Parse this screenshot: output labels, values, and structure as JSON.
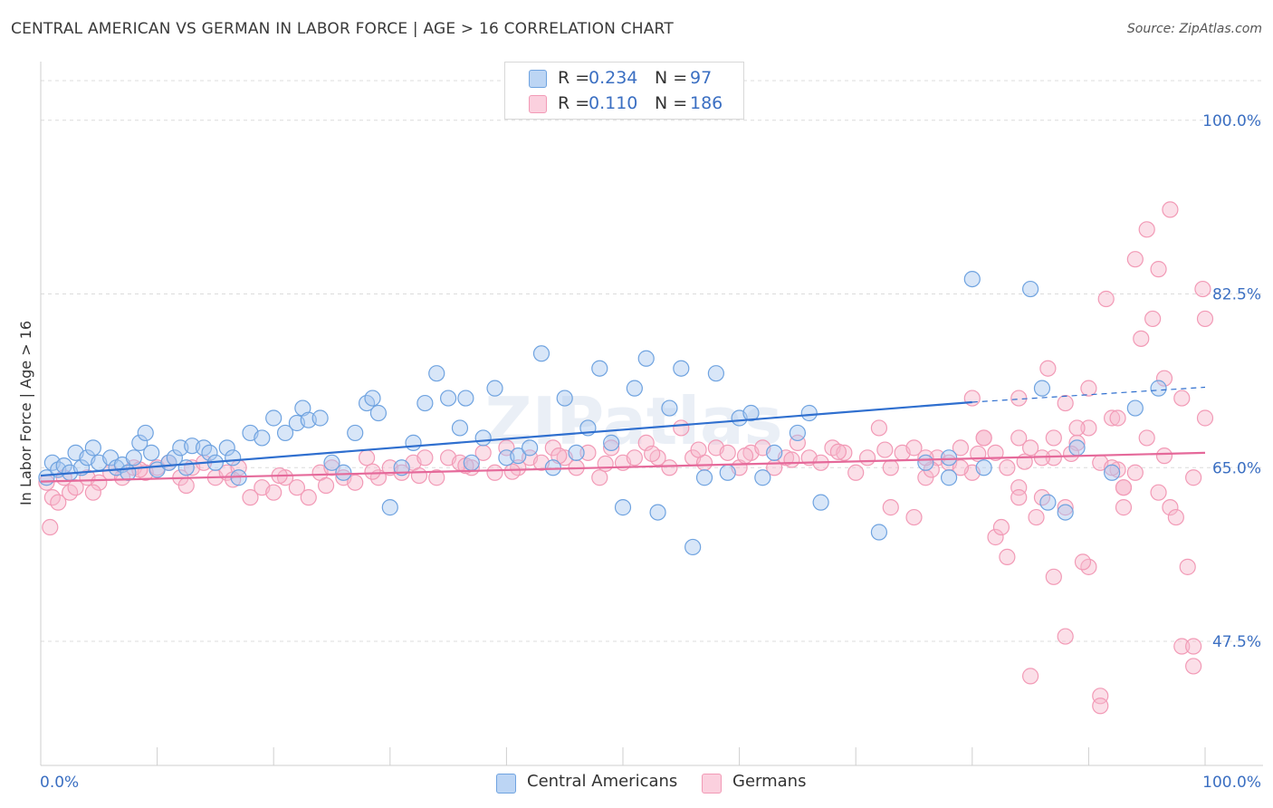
{
  "title": "CENTRAL AMERICAN VS GERMAN IN LABOR FORCE | AGE > 16 CORRELATION CHART",
  "source": "Source: ZipAtlas.com",
  "legend_stats": [
    {
      "r_label": "R =",
      "r_value": "0.234",
      "n_label": "N =",
      "n_value": "97",
      "color": "#a9c8f0"
    },
    {
      "r_label": "R =",
      "r_value": "0.110",
      "n_label": "N =",
      "n_value": "186",
      "color": "#f6b9cd"
    }
  ],
  "bottom_legend": [
    "Central Americans",
    "Germans"
  ],
  "chart_data": {
    "type": "scatter",
    "title": "CENTRAL AMERICAN VS GERMAN IN LABOR FORCE | AGE > 16 CORRELATION CHART",
    "xlabel": "",
    "ylabel": "In Labor Force | Age > 16",
    "xlim": [
      0,
      100
    ],
    "ylim": [
      35,
      105
    ],
    "x_tick_labels": [
      "0.0%",
      "100.0%"
    ],
    "y_ticks": [
      47.5,
      65.0,
      82.5,
      100.0
    ],
    "y_tick_labels": [
      "47.5%",
      "65.0%",
      "82.5%",
      "100.0%"
    ],
    "grid": true,
    "legend_position": "top-center",
    "series": [
      {
        "name": "Central Americans",
        "color": "#6fa3e0",
        "trend": {
          "x": [
            0,
            80
          ],
          "y": [
            64.2,
            71.6
          ],
          "dashed_to": [
            100,
            73.1
          ]
        },
        "points": [
          [
            0.5,
            64
          ],
          [
            1,
            65.5
          ],
          [
            1.5,
            64.8
          ],
          [
            2,
            65.2
          ],
          [
            2.5,
            64.5
          ],
          [
            3,
            66.5
          ],
          [
            3.5,
            65
          ],
          [
            4,
            66
          ],
          [
            4.5,
            67
          ],
          [
            5,
            65.5
          ],
          [
            6,
            66
          ],
          [
            6.5,
            65
          ],
          [
            7,
            65.3
          ],
          [
            7.5,
            64.5
          ],
          [
            8,
            66
          ],
          [
            8.5,
            67.5
          ],
          [
            9,
            68.5
          ],
          [
            9.5,
            66.5
          ],
          [
            10,
            64.8
          ],
          [
            11,
            65.5
          ],
          [
            11.5,
            66
          ],
          [
            12,
            67
          ],
          [
            12.5,
            65
          ],
          [
            13,
            67.2
          ],
          [
            14,
            67
          ],
          [
            14.5,
            66.5
          ],
          [
            15,
            65.5
          ],
          [
            16,
            67
          ],
          [
            16.5,
            66
          ],
          [
            17,
            64
          ],
          [
            18,
            68.5
          ],
          [
            19,
            68
          ],
          [
            20,
            70
          ],
          [
            21,
            68.5
          ],
          [
            22,
            69.5
          ],
          [
            22.5,
            71
          ],
          [
            23,
            69.8
          ],
          [
            24,
            70
          ],
          [
            25,
            65.5
          ],
          [
            26,
            64.5
          ],
          [
            27,
            68.5
          ],
          [
            28,
            71.5
          ],
          [
            28.5,
            72
          ],
          [
            29,
            70.5
          ],
          [
            30,
            61
          ],
          [
            31,
            65
          ],
          [
            32,
            67.5
          ],
          [
            33,
            71.5
          ],
          [
            34,
            74.5
          ],
          [
            35,
            72
          ],
          [
            36,
            69
          ],
          [
            36.5,
            72
          ],
          [
            37,
            65.5
          ],
          [
            38,
            68
          ],
          [
            39,
            73
          ],
          [
            40,
            66
          ],
          [
            41,
            66.2
          ],
          [
            42,
            67
          ],
          [
            43,
            76.5
          ],
          [
            44,
            65
          ],
          [
            45,
            72
          ],
          [
            46,
            66.5
          ],
          [
            47,
            69
          ],
          [
            48,
            75
          ],
          [
            49,
            67.5
          ],
          [
            50,
            61
          ],
          [
            51,
            73
          ],
          [
            52,
            76
          ],
          [
            53,
            60.5
          ],
          [
            54,
            71
          ],
          [
            55,
            75
          ],
          [
            56,
            57
          ],
          [
            57,
            64
          ],
          [
            58,
            74.5
          ],
          [
            59,
            64.5
          ],
          [
            60,
            70
          ],
          [
            61,
            70.5
          ],
          [
            62,
            64
          ],
          [
            63,
            66.5
          ],
          [
            65,
            68.5
          ],
          [
            66,
            70.5
          ],
          [
            67,
            61.5
          ],
          [
            72,
            58.5
          ],
          [
            76,
            65.5
          ],
          [
            78,
            66
          ],
          [
            80,
            84
          ],
          [
            81,
            65
          ],
          [
            85,
            83
          ],
          [
            86,
            73
          ],
          [
            86.5,
            61.5
          ],
          [
            88,
            60.5
          ],
          [
            89,
            67
          ],
          [
            92,
            64.5
          ],
          [
            94,
            71
          ],
          [
            96,
            73
          ],
          [
            78,
            64
          ]
        ]
      },
      {
        "name": "Germans",
        "color": "#f29ab6",
        "trend": {
          "x": [
            0,
            100
          ],
          "y": [
            63.6,
            66.5
          ]
        },
        "points": [
          [
            0.5,
            63.5
          ],
          [
            1,
            62
          ],
          [
            1.5,
            61.5
          ],
          [
            2,
            64
          ],
          [
            2.5,
            62.5
          ],
          [
            3,
            63
          ],
          [
            4,
            64
          ],
          [
            5,
            63.5
          ],
          [
            6,
            64.5
          ],
          [
            7,
            64
          ],
          [
            8,
            65
          ],
          [
            9,
            64.5
          ],
          [
            10,
            65
          ],
          [
            11,
            65.5
          ],
          [
            12,
            64
          ],
          [
            13,
            65
          ],
          [
            14,
            65.5
          ],
          [
            15,
            64
          ],
          [
            16,
            64.5
          ],
          [
            17,
            65
          ],
          [
            18,
            62
          ],
          [
            19,
            63
          ],
          [
            20,
            62.5
          ],
          [
            21,
            64
          ],
          [
            22,
            63
          ],
          [
            23,
            62
          ],
          [
            24,
            64.5
          ],
          [
            25,
            65
          ],
          [
            26,
            64
          ],
          [
            27,
            63.5
          ],
          [
            28,
            66
          ],
          [
            29,
            64
          ],
          [
            30,
            65
          ],
          [
            31,
            64.5
          ],
          [
            32,
            65.5
          ],
          [
            33,
            66
          ],
          [
            34,
            64
          ],
          [
            35,
            66
          ],
          [
            36,
            65.5
          ],
          [
            37,
            65
          ],
          [
            38,
            66.5
          ],
          [
            39,
            64.5
          ],
          [
            40,
            67
          ],
          [
            41,
            65
          ],
          [
            42,
            66
          ],
          [
            43,
            65.5
          ],
          [
            44,
            67
          ],
          [
            45,
            66
          ],
          [
            46,
            65
          ],
          [
            47,
            66.5
          ],
          [
            48,
            64
          ],
          [
            49,
            67
          ],
          [
            50,
            65.5
          ],
          [
            51,
            66
          ],
          [
            52,
            67.5
          ],
          [
            53,
            66
          ],
          [
            54,
            65
          ],
          [
            55,
            69
          ],
          [
            56,
            66
          ],
          [
            57,
            65.5
          ],
          [
            58,
            67
          ],
          [
            59,
            66.5
          ],
          [
            60,
            65
          ],
          [
            61,
            66.5
          ],
          [
            62,
            67
          ],
          [
            63,
            65
          ],
          [
            64,
            66
          ],
          [
            65,
            67.5
          ],
          [
            66,
            66
          ],
          [
            67,
            65.5
          ],
          [
            68,
            67
          ],
          [
            69,
            66.5
          ],
          [
            70,
            64.5
          ],
          [
            71,
            66
          ],
          [
            72,
            69
          ],
          [
            73,
            65
          ],
          [
            74,
            66.5
          ],
          [
            75,
            67
          ],
          [
            76,
            64
          ],
          [
            77,
            66
          ],
          [
            78,
            65.5
          ],
          [
            79,
            67
          ],
          [
            80,
            64.5
          ],
          [
            81,
            68
          ],
          [
            82,
            66.5
          ],
          [
            83,
            65
          ],
          [
            84,
            68
          ],
          [
            85,
            67
          ],
          [
            86,
            62
          ],
          [
            87,
            66
          ],
          [
            88,
            61
          ],
          [
            89,
            67.5
          ],
          [
            90,
            69
          ],
          [
            91,
            65.5
          ],
          [
            92,
            70
          ],
          [
            93,
            63
          ],
          [
            94,
            64.5
          ],
          [
            95,
            68
          ],
          [
            96,
            62.5
          ],
          [
            97,
            61
          ],
          [
            98,
            72
          ],
          [
            99,
            64
          ],
          [
            100,
            70
          ],
          [
            0.8,
            59
          ],
          [
            4.5,
            62.5
          ],
          [
            8.5,
            64.8
          ],
          [
            12.5,
            63.2
          ],
          [
            16.5,
            63.8
          ],
          [
            20.5,
            64.2
          ],
          [
            24.5,
            63.2
          ],
          [
            28.5,
            64.6
          ],
          [
            32.5,
            64.2
          ],
          [
            36.5,
            65.2
          ],
          [
            40.5,
            64.6
          ],
          [
            44.5,
            66.2
          ],
          [
            48.5,
            65.4
          ],
          [
            52.5,
            66.4
          ],
          [
            56.5,
            66.8
          ],
          [
            60.5,
            66.2
          ],
          [
            64.5,
            65.8
          ],
          [
            68.5,
            66.6
          ],
          [
            72.5,
            66.8
          ],
          [
            76.5,
            64.8
          ],
          [
            80.5,
            66.4
          ],
          [
            84.5,
            65.6
          ],
          [
            88.5,
            66.4
          ],
          [
            92.5,
            64.8
          ],
          [
            96.5,
            66.2
          ],
          [
            73,
            61
          ],
          [
            75,
            60
          ],
          [
            76,
            66
          ],
          [
            79,
            65
          ],
          [
            80,
            72
          ],
          [
            81,
            68
          ],
          [
            82,
            58
          ],
          [
            83,
            56
          ],
          [
            84,
            63
          ],
          [
            85,
            44
          ],
          [
            86,
            66
          ],
          [
            87,
            54
          ],
          [
            88,
            48
          ],
          [
            89,
            69
          ],
          [
            90,
            55
          ],
          [
            91,
            42
          ],
          [
            92,
            65
          ],
          [
            93,
            63
          ],
          [
            94,
            86
          ],
          [
            95,
            89
          ],
          [
            96,
            85
          ],
          [
            97,
            91
          ],
          [
            98,
            47
          ],
          [
            99,
            45
          ],
          [
            100,
            80
          ],
          [
            82.5,
            59
          ],
          [
            84,
            72
          ],
          [
            85.5,
            60
          ],
          [
            86.5,
            75
          ],
          [
            87,
            68
          ],
          [
            88,
            71.5
          ],
          [
            89.5,
            55.5
          ],
          [
            90,
            73
          ],
          [
            91.5,
            82
          ],
          [
            92.5,
            70
          ],
          [
            93,
            61
          ],
          [
            94.5,
            78
          ],
          [
            95.5,
            80
          ],
          [
            96.5,
            74
          ],
          [
            97.5,
            60
          ],
          [
            98.5,
            55
          ],
          [
            99,
            47
          ],
          [
            99.8,
            83
          ],
          [
            91,
            41
          ],
          [
            84,
            62
          ]
        ]
      }
    ]
  }
}
